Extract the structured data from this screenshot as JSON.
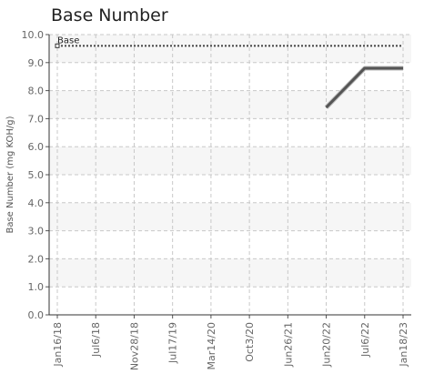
{
  "chart_data": {
    "type": "line",
    "title": "Base Number",
    "xlabel": "",
    "ylabel": "Base Number (mg KOH/g)",
    "ylim": [
      0,
      10
    ],
    "y_ticks": [
      "0.0",
      "1.0",
      "2.0",
      "3.0",
      "4.0",
      "5.0",
      "6.0",
      "7.0",
      "8.0",
      "9.0",
      "10.0"
    ],
    "categories": [
      "Jan16/18",
      "Jul6/18",
      "Nov28/18",
      "Jul17/19",
      "Mar14/20",
      "Oct3/20",
      "Jun26/21",
      "Jun20/22",
      "Jul6/22",
      "Jan18/23"
    ],
    "grid": true,
    "legend": "none",
    "series": [
      {
        "values": [
          null,
          null,
          null,
          null,
          null,
          null,
          null,
          7.4,
          8.8,
          8.8
        ],
        "color": "#555555"
      }
    ],
    "reference_lines": [
      {
        "label": "Base",
        "value": 9.6,
        "color": "#444444",
        "style": "dotted"
      }
    ]
  }
}
